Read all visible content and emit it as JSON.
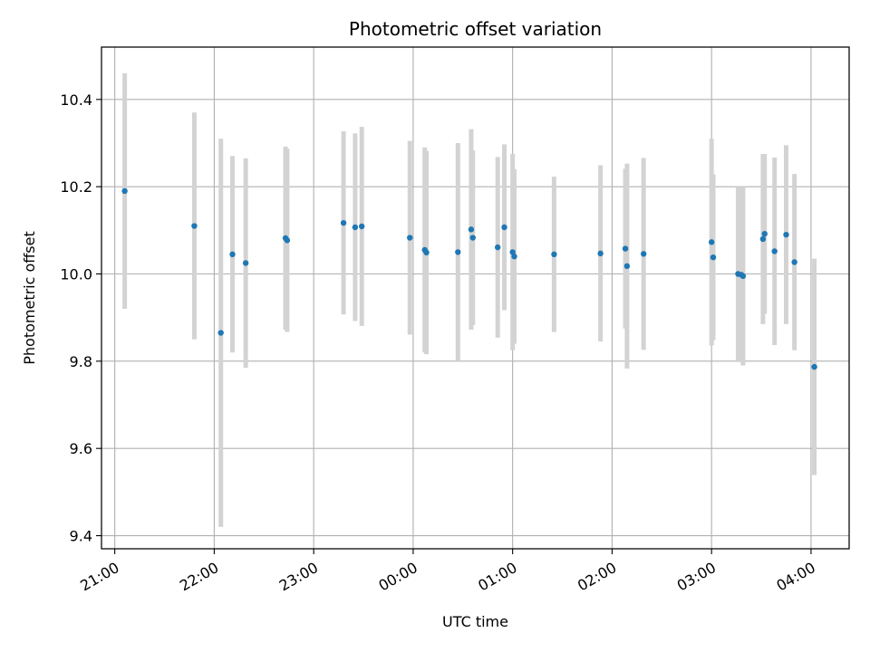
{
  "chart_data": {
    "type": "scatter",
    "title": "Photometric offset variation",
    "xlabel": "UTC time",
    "ylabel": "Photometric offset",
    "grid": true,
    "x_unit": "UTC time",
    "xlim": [
      "20:52",
      "04:23"
    ],
    "ylim": [
      9.37,
      10.52
    ],
    "x_ticks": [
      "21:00",
      "22:00",
      "23:00",
      "00:00",
      "01:00",
      "02:00",
      "03:00",
      "04:00"
    ],
    "y_ticks": [
      9.4,
      9.6,
      9.8,
      10.0,
      10.2,
      10.4
    ],
    "y_tick_labels": [
      "9.4",
      "9.6",
      "9.8",
      "10.0",
      "10.2",
      "10.4"
    ],
    "colors": {
      "points": "#1f77b4",
      "errorbars": "#d3d3d3",
      "grid": "#b0b0b0"
    },
    "points": [
      {
        "t": "21:06",
        "y": 10.19,
        "err": 0.27
      },
      {
        "t": "21:48",
        "y": 10.11,
        "err": 0.26
      },
      {
        "t": "22:04",
        "y": 9.865,
        "err": 0.445
      },
      {
        "t": "22:11",
        "y": 10.045,
        "err": 0.225
      },
      {
        "t": "22:19",
        "y": 10.025,
        "err": 0.24
      },
      {
        "t": "22:43",
        "y": 10.082,
        "err": 0.21
      },
      {
        "t": "22:44",
        "y": 10.077,
        "err": 0.21
      },
      {
        "t": "23:18",
        "y": 10.117,
        "err": 0.21
      },
      {
        "t": "23:25",
        "y": 10.107,
        "err": 0.215
      },
      {
        "t": "23:29",
        "y": 10.109,
        "err": 0.228
      },
      {
        "t": "23:58",
        "y": 10.083,
        "err": 0.222
      },
      {
        "t": "00:07",
        "y": 10.055,
        "err": 0.235
      },
      {
        "t": "00:08",
        "y": 10.049,
        "err": 0.233
      },
      {
        "t": "00:27",
        "y": 10.05,
        "err": 0.25
      },
      {
        "t": "00:35",
        "y": 10.102,
        "err": 0.23
      },
      {
        "t": "00:36",
        "y": 10.083,
        "err": 0.2
      },
      {
        "t": "00:51",
        "y": 10.061,
        "err": 0.207
      },
      {
        "t": "00:55",
        "y": 10.107,
        "err": 0.19
      },
      {
        "t": "01:00",
        "y": 10.05,
        "err": 0.225
      },
      {
        "t": "01:01",
        "y": 10.04,
        "err": 0.2
      },
      {
        "t": "01:25",
        "y": 10.045,
        "err": 0.178
      },
      {
        "t": "01:53",
        "y": 10.047,
        "err": 0.202
      },
      {
        "t": "02:08",
        "y": 10.058,
        "err": 0.183
      },
      {
        "t": "02:09",
        "y": 10.018,
        "err": 0.235
      },
      {
        "t": "02:19",
        "y": 10.046,
        "err": 0.22
      },
      {
        "t": "03:00",
        "y": 10.073,
        "err": 0.237
      },
      {
        "t": "03:01",
        "y": 10.038,
        "err": 0.19
      },
      {
        "t": "03:16",
        "y": 10.0,
        "err": 0.2
      },
      {
        "t": "03:18",
        "y": 9.998,
        "err": 0.2
      },
      {
        "t": "03:19",
        "y": 9.995,
        "err": 0.205
      },
      {
        "t": "03:31",
        "y": 10.08,
        "err": 0.195
      },
      {
        "t": "03:32",
        "y": 10.092,
        "err": 0.183
      },
      {
        "t": "03:38",
        "y": 10.052,
        "err": 0.215
      },
      {
        "t": "03:45",
        "y": 10.09,
        "err": 0.205
      },
      {
        "t": "03:50",
        "y": 10.027,
        "err": 0.202
      },
      {
        "t": "04:02",
        "y": 9.787,
        "err": 0.248
      }
    ]
  }
}
